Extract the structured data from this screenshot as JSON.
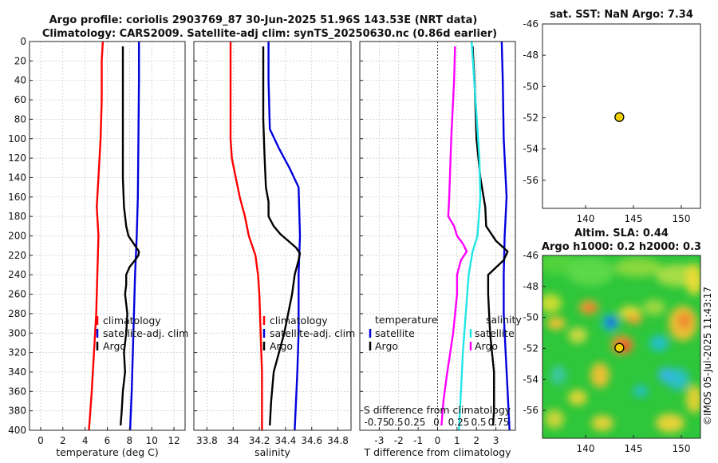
{
  "title_line1": "Argo profile: coriolis 2903769_87 30-Jun-2025 51.96S 143.53E (NRT data)",
  "title_line2": "Climatology: CARS2009. Satellite-adj clim: synTS_20250630.nc (0.86d earlier)",
  "sst_title": "sat. SST: NaN Argo: 7.34",
  "altim_title1": "Altim. SLA: 0.44",
  "altim_title2": "Argo h1000: 0.2 h2000: 0.3",
  "side_label": "©IMOS 05-Jul-2025 11:43:17",
  "colors": {
    "climatology": "#ff0000",
    "satellite": "#0000dd",
    "argo": "#000000",
    "sal_satellite": "#22e6e6",
    "sal_argo": "#ff00ff",
    "marker": "#f0d000"
  },
  "chart_data": [
    {
      "name": "temperature-panel",
      "type": "line",
      "xlabel": "temperature (deg C)",
      "xlim": [
        -1,
        13
      ],
      "ylim": [
        400,
        0
      ],
      "xticks": [
        0,
        2,
        4,
        6,
        8,
        10,
        12
      ],
      "yticks": [
        0,
        20,
        40,
        60,
        80,
        100,
        120,
        140,
        160,
        180,
        200,
        220,
        240,
        260,
        280,
        300,
        320,
        340,
        360,
        380,
        400
      ],
      "legend": [
        "climatology",
        "satellite-adj. clim",
        "Argo"
      ],
      "series": [
        {
          "name": "climatology",
          "color": "climatology",
          "depth": [
            0,
            20,
            60,
            100,
            140,
            170,
            200,
            240,
            280,
            320,
            360,
            400
          ],
          "values": [
            5.6,
            5.5,
            5.5,
            5.4,
            5.2,
            5.05,
            5.2,
            5.1,
            5.0,
            4.8,
            4.6,
            4.35
          ]
        },
        {
          "name": "satellite-adj. clim",
          "color": "satellite",
          "depth": [
            0,
            40,
            100,
            160,
            200,
            240,
            280,
            320,
            360,
            400
          ],
          "values": [
            8.85,
            8.85,
            8.8,
            8.75,
            8.65,
            8.5,
            8.4,
            8.3,
            8.2,
            8.05
          ]
        },
        {
          "name": "Argo",
          "color": "argo",
          "depth": [
            5,
            20,
            60,
            100,
            140,
            170,
            180,
            190,
            200,
            205,
            210,
            216,
            220,
            225,
            232,
            240,
            250,
            260,
            280,
            300,
            320,
            340,
            360,
            380,
            395
          ],
          "values": [
            7.4,
            7.4,
            7.4,
            7.4,
            7.4,
            7.5,
            7.6,
            7.7,
            7.9,
            8.2,
            8.5,
            8.85,
            8.8,
            8.5,
            8.0,
            7.7,
            7.7,
            7.6,
            7.8,
            7.7,
            7.5,
            7.6,
            7.4,
            7.3,
            7.2
          ]
        }
      ]
    },
    {
      "name": "salinity-panel",
      "type": "line",
      "xlabel": "salinity",
      "xlim": [
        33.7,
        34.9
      ],
      "ylim": [
        400,
        0
      ],
      "xticks": [
        33.8,
        34,
        34.2,
        34.4,
        34.6,
        34.8
      ],
      "legend": [
        "climatology",
        "satellite-adj. clim",
        "Argo"
      ],
      "series": [
        {
          "name": "climatology",
          "color": "climatology",
          "depth": [
            0,
            40,
            80,
            100,
            120,
            140,
            160,
            180,
            200,
            220,
            240,
            260,
            300,
            340,
            400
          ],
          "values": [
            33.98,
            33.98,
            33.98,
            33.98,
            33.99,
            34.02,
            34.05,
            34.09,
            34.12,
            34.17,
            34.19,
            34.2,
            34.21,
            34.22,
            34.22
          ]
        },
        {
          "name": "satellite-adj. clim",
          "color": "satellite",
          "depth": [
            0,
            40,
            90,
            110,
            130,
            150,
            200,
            240,
            300,
            340,
            400
          ],
          "values": [
            34.27,
            34.27,
            34.28,
            34.35,
            34.43,
            34.5,
            34.51,
            34.5,
            34.5,
            34.49,
            34.47
          ]
        },
        {
          "name": "Argo",
          "color": "argo",
          "depth": [
            5,
            40,
            80,
            120,
            150,
            165,
            180,
            190,
            198,
            205,
            212,
            218,
            225,
            240,
            260,
            300,
            340,
            370,
            395
          ],
          "values": [
            34.23,
            34.23,
            34.23,
            34.24,
            34.25,
            34.27,
            34.27,
            34.31,
            34.36,
            34.42,
            34.48,
            34.51,
            34.5,
            34.47,
            34.45,
            34.39,
            34.31,
            34.29,
            34.28
          ]
        }
      ]
    },
    {
      "name": "difference-panel",
      "type": "line",
      "xlabel": "T difference from climatology",
      "xlabel_top": "S difference from climatology",
      "xlim": [
        -4,
        4
      ],
      "ylim": [
        400,
        0
      ],
      "xticks": [
        -3,
        -2,
        -1,
        0,
        1,
        2,
        3
      ],
      "xticks_top": [
        "-0.75",
        "0.5",
        "0.25",
        "0",
        "0.25",
        "0.5",
        "0.75"
      ],
      "legend_t": [
        "temperature",
        "satellite",
        "Argo"
      ],
      "legend_s": [
        "salinity",
        "satellite",
        "Argo"
      ],
      "series": [
        {
          "name": "T satellite",
          "color": "satellite",
          "depth": [
            0,
            40,
            100,
            160,
            200,
            240,
            280,
            320,
            360,
            400
          ],
          "values": [
            3.3,
            3.35,
            3.4,
            3.55,
            3.45,
            3.4,
            3.4,
            3.5,
            3.6,
            3.7
          ]
        },
        {
          "name": "T Argo",
          "color": "argo",
          "depth": [
            5,
            40,
            100,
            140,
            170,
            190,
            205,
            216,
            225,
            240,
            260,
            300,
            340,
            380,
            395
          ],
          "values": [
            1.8,
            1.9,
            2.0,
            2.2,
            2.45,
            2.5,
            3.0,
            3.6,
            3.4,
            2.6,
            2.6,
            2.7,
            2.9,
            2.9,
            2.85
          ]
        },
        {
          "name": "S satellite",
          "color": "sal_satellite",
          "depth": [
            0,
            60,
            120,
            160,
            200,
            216,
            240,
            280,
            320,
            360,
            400
          ],
          "values": [
            1.75,
            1.95,
            2.15,
            2.2,
            2.05,
            1.8,
            1.6,
            1.45,
            1.3,
            1.2,
            1.1
          ]
        },
        {
          "name": "S Argo",
          "color": "sal_argo",
          "depth": [
            5,
            40,
            100,
            160,
            180,
            190,
            200,
            208,
            216,
            225,
            240,
            260,
            300,
            340,
            370,
            395
          ],
          "values": [
            0.9,
            0.85,
            0.7,
            0.6,
            0.55,
            0.85,
            1.0,
            1.3,
            1.5,
            1.2,
            1.0,
            1.0,
            0.8,
            0.5,
            0.3,
            0.2
          ]
        }
      ]
    },
    {
      "name": "sst-map",
      "type": "scatter",
      "title": "sat. SST: NaN Argo: 7.34",
      "xlim": [
        135.5,
        152
      ],
      "ylim": [
        -57.8,
        -46
      ],
      "xticks": [
        140,
        145,
        150
      ],
      "yticks": [
        -46,
        -48,
        -50,
        -52,
        -54,
        -56
      ],
      "points": [
        {
          "x": 143.53,
          "y": -51.96
        }
      ]
    },
    {
      "name": "sla-map",
      "type": "heatmap",
      "title": "Altim. SLA: 0.44",
      "subtitle": "Argo h1000: 0.2 h2000: 0.3",
      "xlim": [
        135.5,
        152
      ],
      "ylim": [
        -57.8,
        -46
      ],
      "xticks": [
        140,
        145,
        150
      ],
      "yticks": [
        -46,
        -48,
        -50,
        -52,
        -54,
        -56
      ],
      "points": [
        {
          "x": 143.53,
          "y": -51.96
        }
      ]
    }
  ]
}
